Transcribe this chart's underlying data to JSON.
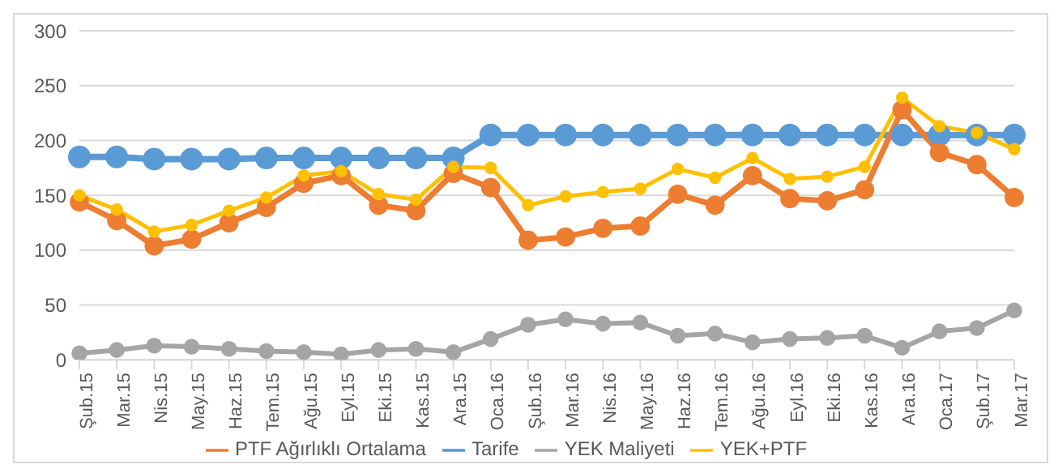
{
  "chart_data": {
    "type": "line",
    "categories": [
      "Şub.15",
      "Mar.15",
      "Nis.15",
      "May.15",
      "Haz.15",
      "Tem.15",
      "Ağu.15",
      "Eyl.15",
      "Eki.15",
      "Kas.15",
      "Ara.15",
      "Oca.16",
      "Şub.16",
      "Mar.16",
      "Nis.16",
      "May.16",
      "Haz.16",
      "Tem.16",
      "Ağu.16",
      "Eyl.16",
      "Eki.16",
      "Kas.16",
      "Ara.16",
      "Oca.17",
      "Şub.17",
      "Mar.17"
    ],
    "series": [
      {
        "name": "Tarife",
        "color": "#5b9bd5",
        "values": [
          185,
          185,
          183,
          183,
          183,
          184,
          184,
          184,
          184,
          184,
          184,
          205,
          205,
          205,
          205,
          205,
          205,
          205,
          205,
          205,
          205,
          205,
          205,
          205,
          205,
          205
        ]
      },
      {
        "name": "PTF Ağırlıklı Ortalama",
        "color": "#ed7d31",
        "values": [
          144,
          127,
          104,
          110,
          125,
          139,
          161,
          168,
          141,
          136,
          170,
          157,
          109,
          112,
          120,
          122,
          151,
          141,
          168,
          147,
          145,
          155,
          228,
          189,
          178,
          148
        ]
      },
      {
        "name": "YEK Maliyeti",
        "color": "#a5a5a5",
        "values": [
          6,
          9,
          13,
          12,
          10,
          8,
          7,
          5,
          9,
          10,
          7,
          19,
          32,
          37,
          33,
          34,
          22,
          24,
          16,
          19,
          20,
          22,
          11,
          26,
          29,
          45
        ]
      },
      {
        "name": "YEK+PTF",
        "color": "#ffc000",
        "values": [
          150,
          137,
          117,
          123,
          136,
          148,
          168,
          172,
          151,
          146,
          176,
          175,
          141,
          149,
          153,
          156,
          174,
          166,
          184,
          165,
          167,
          176,
          239,
          213,
          207,
          192
        ]
      }
    ],
    "ylim": [
      0,
      300
    ],
    "yticks": [
      0,
      50,
      100,
      150,
      200,
      250,
      300
    ],
    "grid": "y",
    "legend": "bottom",
    "marker": "circle",
    "line_style": "solid"
  }
}
